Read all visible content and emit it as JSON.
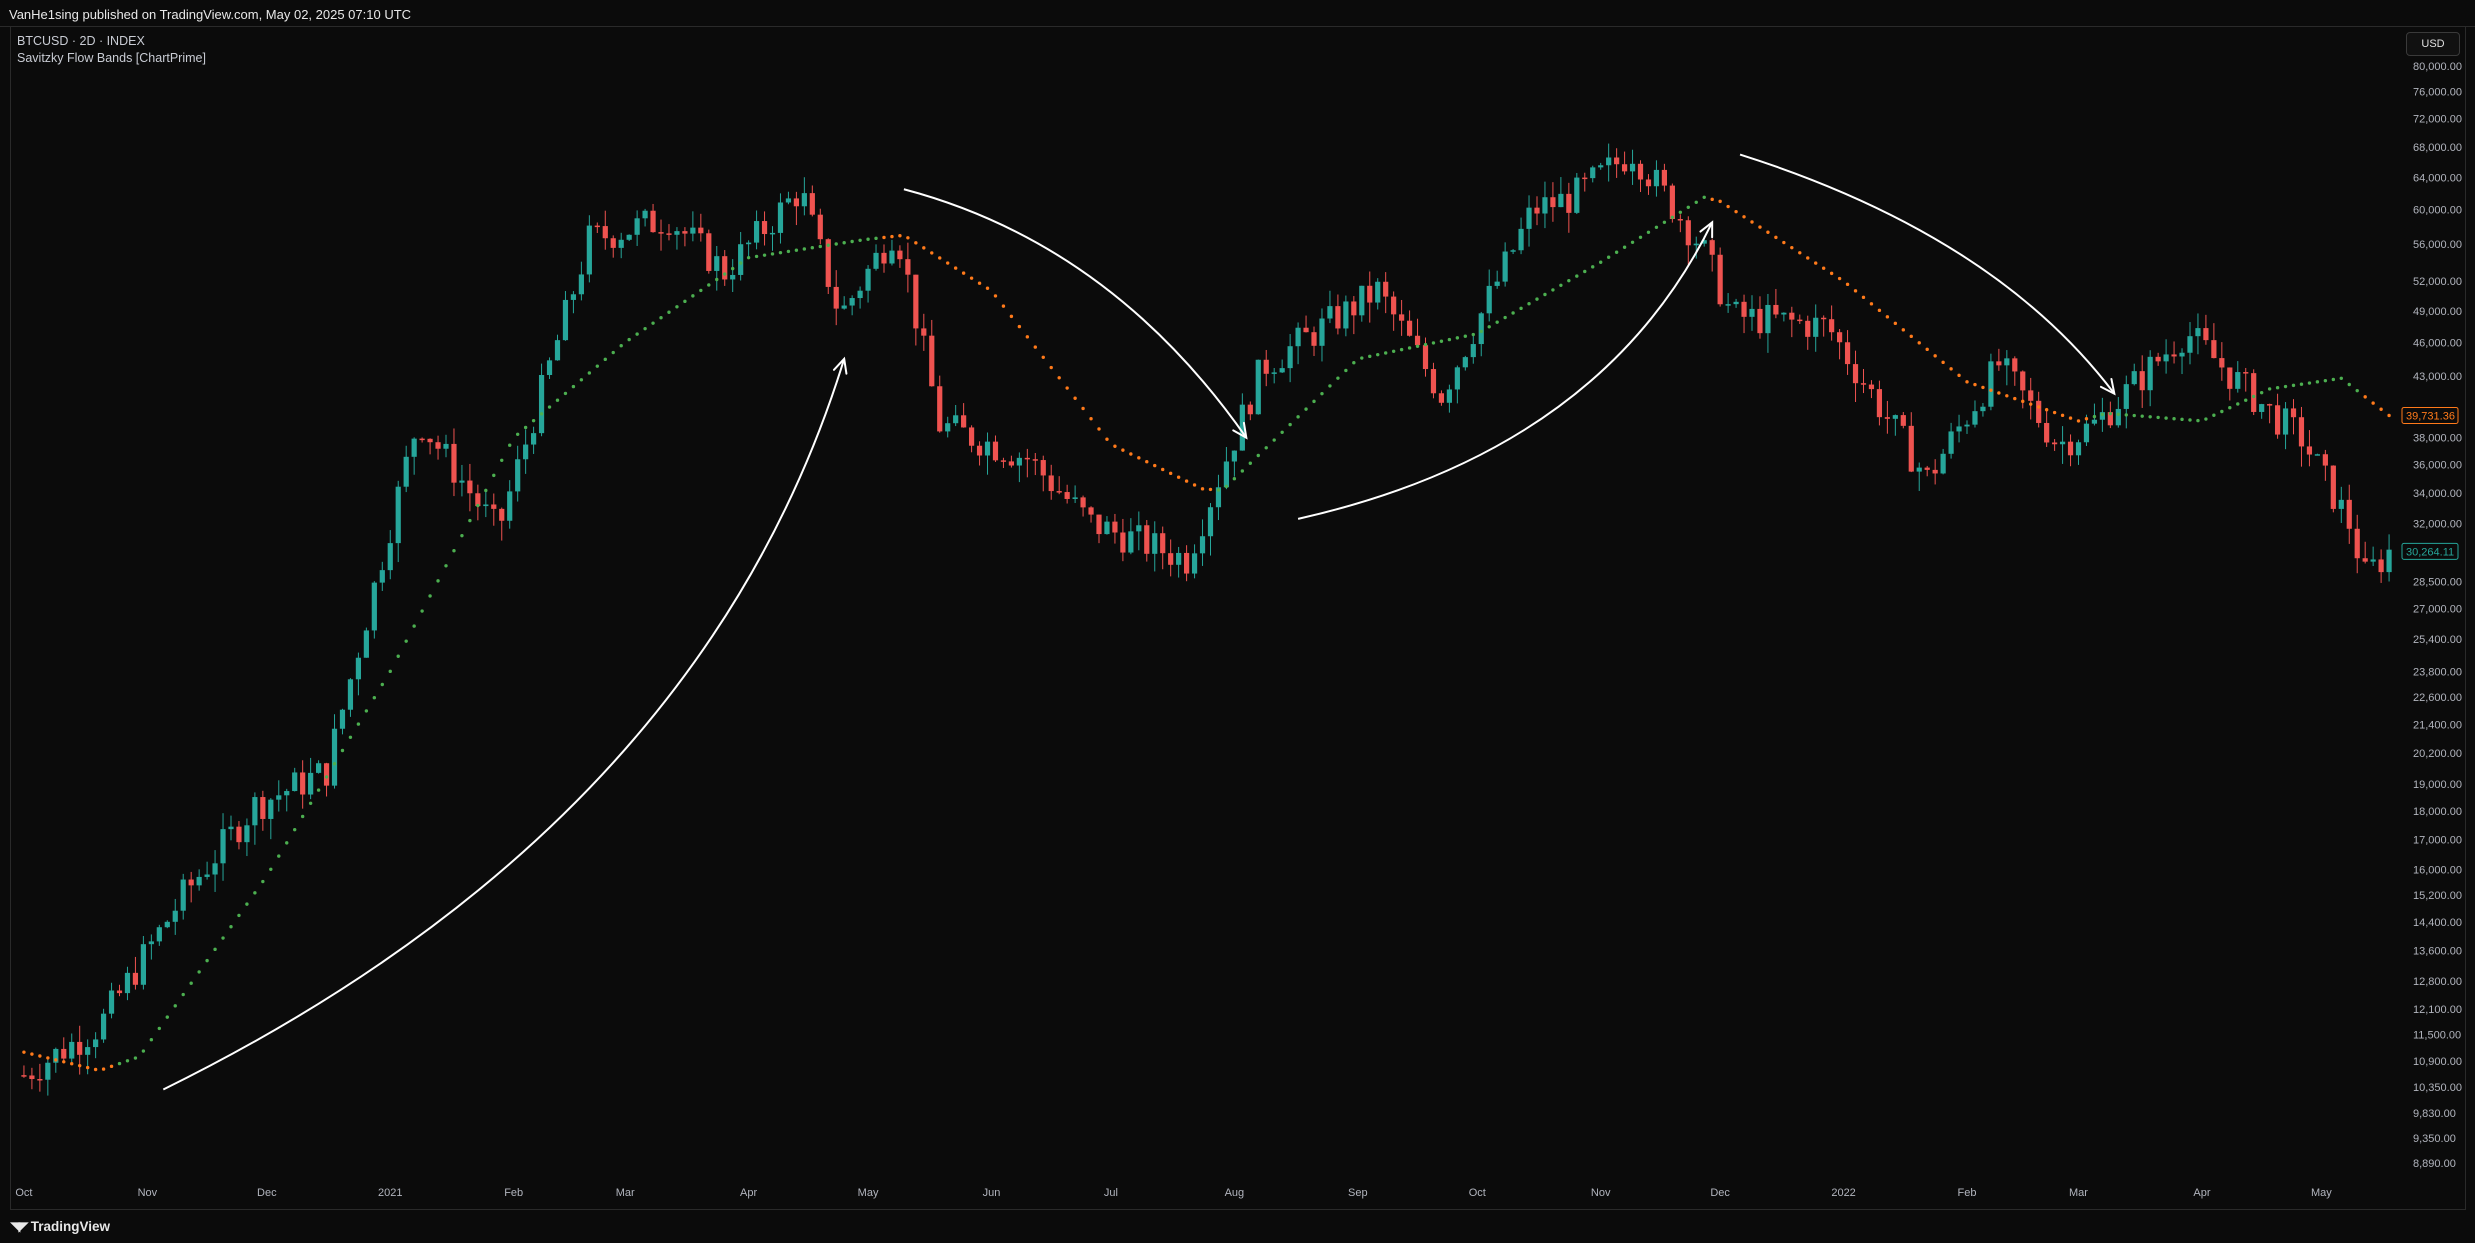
{
  "header": {
    "published": "VanHe1sing published on TradingView.com, May 02, 2025 07:10 UTC"
  },
  "legend": {
    "symbol": "BTCUSD · 2D · INDEX",
    "indicator": "Savitzky Flow Bands [ChartPrime]"
  },
  "currency_button": "USD",
  "footer": {
    "brand": "TradingView"
  },
  "colors": {
    "up": "#26a69a",
    "down": "#ef5350",
    "band_bull": "#4caf50",
    "band_bear": "#ff7a1a",
    "arrow": "#ffffff"
  },
  "chart_data": {
    "type": "candlestick",
    "y_scale": "log",
    "ylim": [
      8890,
      80000
    ],
    "y_ticks": [
      {
        "v": 80000,
        "l": "80,000.00"
      },
      {
        "v": 76000,
        "l": "76,000.00"
      },
      {
        "v": 72000,
        "l": "72,000.00"
      },
      {
        "v": 68000,
        "l": "68,000.00"
      },
      {
        "v": 64000,
        "l": "64,000.00"
      },
      {
        "v": 60000,
        "l": "60,000.00"
      },
      {
        "v": 56000,
        "l": "56,000.00"
      },
      {
        "v": 52000,
        "l": "52,000.00"
      },
      {
        "v": 49000,
        "l": "49,000.00"
      },
      {
        "v": 46000,
        "l": "46,000.00"
      },
      {
        "v": 43000,
        "l": "43,000.00"
      },
      {
        "v": 38000,
        "l": "38,000.00"
      },
      {
        "v": 36000,
        "l": "36,000.00"
      },
      {
        "v": 34000,
        "l": "34,000.00"
      },
      {
        "v": 32000,
        "l": "32,000.00"
      },
      {
        "v": 28500,
        "l": "28,500.00"
      },
      {
        "v": 27000,
        "l": "27,000.00"
      },
      {
        "v": 25400,
        "l": "25,400.00"
      },
      {
        "v": 23800,
        "l": "23,800.00"
      },
      {
        "v": 22600,
        "l": "22,600.00"
      },
      {
        "v": 21400,
        "l": "21,400.00"
      },
      {
        "v": 20200,
        "l": "20,200.00"
      },
      {
        "v": 19000,
        "l": "19,000.00"
      },
      {
        "v": 18000,
        "l": "18,000.00"
      },
      {
        "v": 17000,
        "l": "17,000.00"
      },
      {
        "v": 16000,
        "l": "16,000.00"
      },
      {
        "v": 15200,
        "l": "15,200.00"
      },
      {
        "v": 14400,
        "l": "14,400.00"
      },
      {
        "v": 13600,
        "l": "13,600.00"
      },
      {
        "v": 12800,
        "l": "12,800.00"
      },
      {
        "v": 12100,
        "l": "12,100.00"
      },
      {
        "v": 11500,
        "l": "11,500.00"
      },
      {
        "v": 10900,
        "l": "10,900.00"
      },
      {
        "v": 10350,
        "l": "10,350.00"
      },
      {
        "v": 9830,
        "l": "9,830.00"
      },
      {
        "v": 9350,
        "l": "9,350.00"
      },
      {
        "v": 8890,
        "l": "8,890.00"
      }
    ],
    "x_ticks": [
      {
        "l": "Oct",
        "d": "2020-10-01"
      },
      {
        "l": "Nov",
        "d": "2020-11-01"
      },
      {
        "l": "Dec",
        "d": "2020-12-01"
      },
      {
        "l": "2021",
        "d": "2021-01-01"
      },
      {
        "l": "Feb",
        "d": "2021-02-01"
      },
      {
        "l": "Mar",
        "d": "2021-03-01"
      },
      {
        "l": "Apr",
        "d": "2021-04-01"
      },
      {
        "l": "May",
        "d": "2021-05-01"
      },
      {
        "l": "Jun",
        "d": "2021-06-01"
      },
      {
        "l": "Jul",
        "d": "2021-07-01"
      },
      {
        "l": "Aug",
        "d": "2021-08-01"
      },
      {
        "l": "Sep",
        "d": "2021-09-01"
      },
      {
        "l": "Oct",
        "d": "2021-10-01"
      },
      {
        "l": "Nov",
        "d": "2021-11-01"
      },
      {
        "l": "Dec",
        "d": "2021-12-01"
      },
      {
        "l": "2022",
        "d": "2022-01-01"
      },
      {
        "l": "Feb",
        "d": "2022-02-01"
      },
      {
        "l": "Mar",
        "d": "2022-03-01"
      },
      {
        "l": "Apr",
        "d": "2022-04-01"
      },
      {
        "l": "May",
        "d": "2022-05-01"
      }
    ],
    "close_anchors": [
      [
        "2020-10-01",
        10600
      ],
      [
        "2020-10-20",
        11700
      ],
      [
        "2020-11-10",
        15200
      ],
      [
        "2020-11-28",
        18200
      ],
      [
        "2020-12-16",
        19500
      ],
      [
        "2021-01-08",
        39500
      ],
      [
        "2021-01-28",
        31500
      ],
      [
        "2021-02-20",
        56500
      ],
      [
        "2021-03-12",
        59000
      ],
      [
        "2021-03-26",
        53000
      ],
      [
        "2021-04-14",
        62500
      ],
      [
        "2021-04-24",
        48500
      ],
      [
        "2021-05-08",
        58000
      ],
      [
        "2021-05-19",
        39000
      ],
      [
        "2021-06-10",
        36500
      ],
      [
        "2021-06-26",
        32000
      ],
      [
        "2021-07-20",
        29800
      ],
      [
        "2021-08-08",
        43800
      ],
      [
        "2021-09-06",
        51000
      ],
      [
        "2021-09-22",
        41500
      ],
      [
        "2021-10-15",
        60000
      ],
      [
        "2021-10-25",
        61500
      ],
      [
        "2021-11-09",
        67500
      ],
      [
        "2021-11-26",
        56000
      ],
      [
        "2021-12-04",
        48500
      ],
      [
        "2021-12-28",
        47500
      ],
      [
        "2022-01-22",
        35000
      ],
      [
        "2022-02-09",
        44000
      ],
      [
        "2022-02-24",
        37500
      ],
      [
        "2022-03-05",
        39000
      ],
      [
        "2022-03-28",
        47000
      ],
      [
        "2022-04-18",
        40000
      ],
      [
        "2022-04-26",
        38000
      ],
      [
        "2022-05-08",
        32000
      ],
      [
        "2022-05-12",
        28800
      ],
      [
        "2022-05-18",
        30264
      ]
    ],
    "band_anchors": [
      [
        "2020-10-01",
        11100,
        "bear"
      ],
      [
        "2020-10-20",
        10700,
        "bear"
      ],
      [
        "2020-10-30",
        11000,
        "bull"
      ],
      [
        "2020-12-01",
        15800,
        "bull"
      ],
      [
        "2021-01-01",
        23800,
        "bull"
      ],
      [
        "2021-02-01",
        38000,
        "bull"
      ],
      [
        "2021-03-01",
        46000,
        "bull"
      ],
      [
        "2021-04-01",
        54500,
        "bull"
      ],
      [
        "2021-04-30",
        56500,
        "bull"
      ],
      [
        "2021-05-10",
        57000,
        "bear"
      ],
      [
        "2021-06-01",
        51000,
        "bear"
      ],
      [
        "2021-07-01",
        37500,
        "bear"
      ],
      [
        "2021-07-24",
        34300,
        "bear"
      ],
      [
        "2021-07-29",
        34200,
        "bull"
      ],
      [
        "2021-09-01",
        44500,
        "bull"
      ],
      [
        "2021-10-01",
        46800,
        "bull"
      ],
      [
        "2021-11-01",
        54000,
        "bull"
      ],
      [
        "2021-11-27",
        61500,
        "bull"
      ],
      [
        "2021-12-01",
        61000,
        "bear"
      ],
      [
        "2022-01-01",
        52000,
        "bear"
      ],
      [
        "2022-02-01",
        42500,
        "bear"
      ],
      [
        "2022-03-01",
        39300,
        "bear"
      ],
      [
        "2022-03-08",
        39900,
        "bull"
      ],
      [
        "2022-04-01",
        39300,
        "bull"
      ],
      [
        "2022-04-18",
        41900,
        "bull"
      ],
      [
        "2022-05-06",
        42800,
        "bull"
      ],
      [
        "2022-05-18",
        39731.36,
        "bear"
      ]
    ],
    "last_price": {
      "value": 30264.11,
      "label": "30,264.11"
    },
    "band_last": {
      "value": 39731.36,
      "label": "39,731.36"
    },
    "annotations": [
      {
        "type": "arrow",
        "from": [
          "2020-11-05",
          10300
        ],
        "ctrl": [
          "2021-03-20",
          17500
        ],
        "to": [
          "2021-04-25",
          44500
        ]
      },
      {
        "type": "arrow",
        "from": [
          "2021-05-10",
          62500
        ],
        "ctrl": [
          "2021-07-01",
          56000
        ],
        "to": [
          "2021-08-04",
          38000
        ]
      },
      {
        "type": "arrow",
        "from": [
          "2021-08-17",
          32300
        ],
        "ctrl": [
          "2021-11-01",
          37000
        ],
        "to": [
          "2021-11-29",
          58500
        ]
      },
      {
        "type": "arrow",
        "from": [
          "2021-12-06",
          67000
        ],
        "ctrl": [
          "2022-02-08",
          57000
        ],
        "to": [
          "2022-03-10",
          41500
        ]
      }
    ]
  }
}
